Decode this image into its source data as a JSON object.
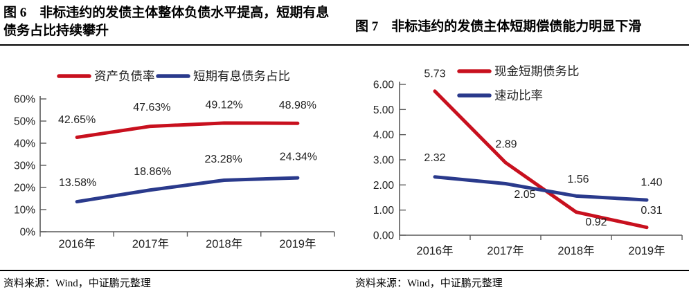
{
  "colors": {
    "red_series": "#C8101E",
    "blue_series": "#2A3A8C",
    "axis": "#595959",
    "label_text": "#1f1f1f",
    "title_text": "#000000",
    "rule": "#000000"
  },
  "left_panel": {
    "title": "图 6　非标违约的发债主体整体负债水平提高，短期有息债务占比持续攀升",
    "source": "资料来源：Wind，中证鹏元整理"
  },
  "right_panel": {
    "title": "图 7　非标违约的发债主体短期偿债能力明显下滑",
    "source": "资料来源：Wind，中证鹏元整理"
  },
  "chart_data": [
    {
      "type": "line",
      "title": "图 6 非标违约的发债主体整体负债水平提高，短期有息债务占比持续攀升",
      "categories": [
        "2016年",
        "2017年",
        "2018年",
        "2019年"
      ],
      "series": [
        {
          "name": "资产负债率",
          "color": "#C8101E",
          "values": [
            42.65,
            47.63,
            49.12,
            48.98
          ],
          "labels": [
            "42.65%",
            "47.63%",
            "49.12%",
            "48.98%"
          ],
          "label_offsets": [
            [
              0,
              -26
            ],
            [
              2,
              -28
            ],
            [
              0,
              -27
            ],
            [
              0,
              -27
            ]
          ]
        },
        {
          "name": "短期有息债务占比",
          "color": "#2A3A8C",
          "values": [
            13.58,
            18.86,
            23.28,
            24.34
          ],
          "labels": [
            "13.58%",
            "18.86%",
            "23.28%",
            "24.34%"
          ],
          "label_offsets": [
            [
              1,
              -28
            ],
            [
              3,
              -27
            ],
            [
              -1,
              -31
            ],
            [
              1,
              -31
            ]
          ]
        }
      ],
      "xlabel": "",
      "ylabel": "",
      "ylim": [
        0,
        60
      ],
      "yticks": [
        "0%",
        "10%",
        "20%",
        "30%",
        "40%",
        "50%",
        "60%"
      ],
      "legend_position": "top-center",
      "grid": false
    },
    {
      "type": "line",
      "title": "图 7 非标违约的发债主体短期偿债能力明显下滑",
      "categories": [
        "2016年",
        "2017年",
        "2018年",
        "2019年"
      ],
      "series": [
        {
          "name": "现金短期债务比",
          "color": "#C8101E",
          "values": [
            5.73,
            2.89,
            0.92,
            0.31
          ],
          "labels": [
            "5.73",
            "2.89",
            "0.92",
            "0.31"
          ],
          "label_offsets": [
            [
              0,
              -26
            ],
            [
              1,
              -27
            ],
            [
              29,
              14
            ],
            [
              7,
              -25
            ]
          ]
        },
        {
          "name": "速动比率",
          "color": "#2A3A8C",
          "values": [
            2.32,
            2.05,
            1.56,
            1.4
          ],
          "labels": [
            "2.32",
            "2.05",
            "1.56",
            "1.40"
          ],
          "label_offsets": [
            [
              0,
              -28
            ],
            [
              28,
              15
            ],
            [
              3,
              -25
            ],
            [
              7,
              -26
            ]
          ]
        }
      ],
      "xlabel": "",
      "ylabel": "",
      "ylim": [
        0,
        6
      ],
      "yticks": [
        "0.00",
        "1.00",
        "2.00",
        "3.00",
        "4.00",
        "5.00",
        "6.00"
      ],
      "legend_position": "top-right-inside",
      "grid": false
    }
  ]
}
